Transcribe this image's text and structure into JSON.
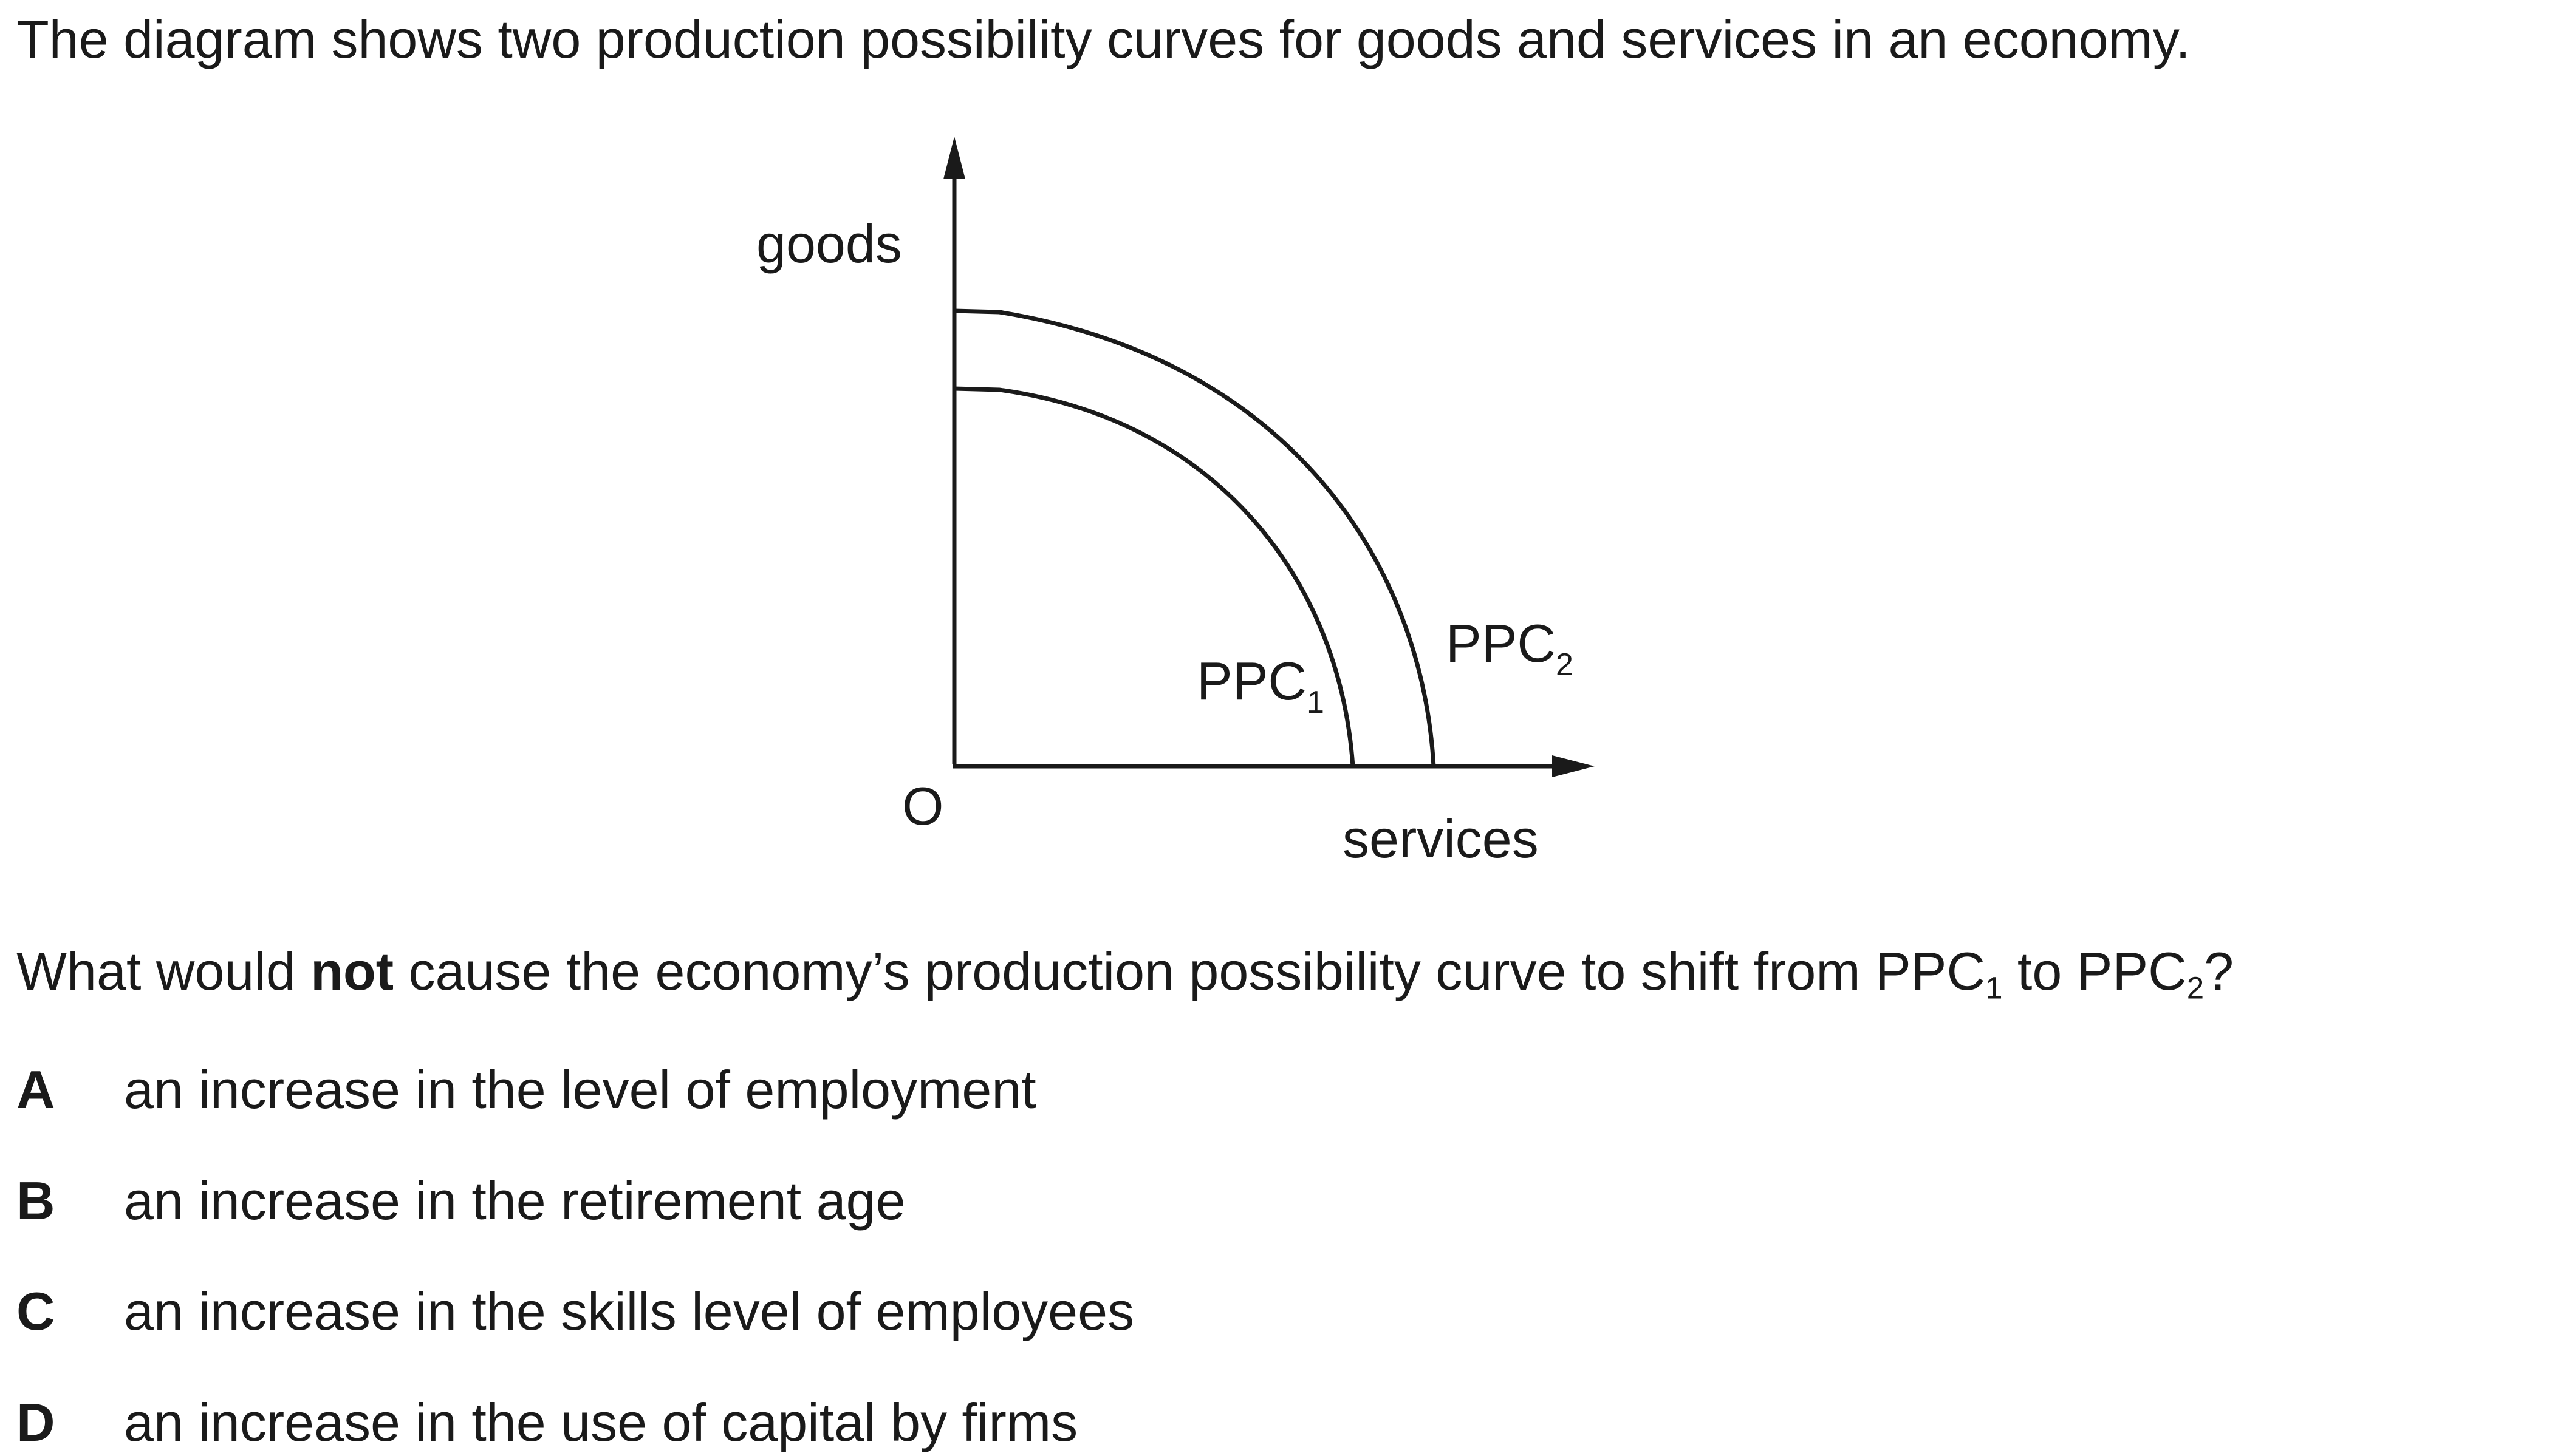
{
  "intro": "The diagram shows two production possibility curves for goods and services in an economy.",
  "diagram": {
    "y_axis_label": "goods",
    "x_axis_label": "services",
    "origin_label": "O",
    "curves": [
      {
        "label": "PPC",
        "subscript": "1"
      },
      {
        "label": "PPC",
        "subscript": "2"
      }
    ]
  },
  "question": {
    "part1": "What would ",
    "emphasis": "not",
    "part2": " cause the economy’s production possibility curve to shift from PPC",
    "sub1": "1",
    "part3": " to PPC",
    "sub2": "2",
    "part4": "?"
  },
  "options": [
    {
      "letter": "A",
      "text": "an increase in the level of employment"
    },
    {
      "letter": "B",
      "text": "an increase in the retirement age"
    },
    {
      "letter": "C",
      "text": "an increase in the skills level of employees"
    },
    {
      "letter": "D",
      "text": "an increase in the use of capital by firms"
    }
  ]
}
